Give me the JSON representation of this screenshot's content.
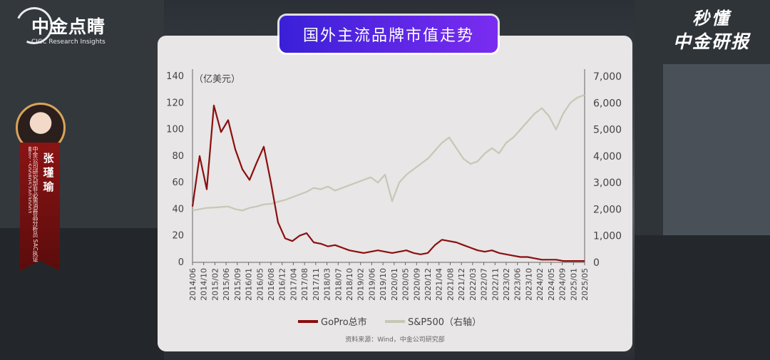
{
  "logo": {
    "title": "中金点睛",
    "subtitle": "CICC Research Insights"
  },
  "brand": {
    "line1": "秒懂",
    "line2": "中金研报"
  },
  "presenter": {
    "name": "张瑾瑜",
    "cert": "中金公司研究部非必需消费品分析员 SAC执证编号：S0080524030001"
  },
  "chart_title": "国外主流品牌市值走势",
  "source": "资料来源：Wind，中金公司研究部",
  "chart_data": {
    "type": "line",
    "y_unit_label": "（亿美元）",
    "ylim_left": [
      0,
      140
    ],
    "ylim_right": [
      0,
      7000
    ],
    "yticks_left": [
      "0",
      "20",
      "40",
      "60",
      "80",
      "100",
      "120",
      "140"
    ],
    "yticks_right": [
      "0",
      "1,000",
      "2,000",
      "3,000",
      "4,000",
      "5,000",
      "6,000",
      "7,000"
    ],
    "x_ticks": [
      "2014/06",
      "2014/10",
      "2015/02",
      "2015/06",
      "2015/09",
      "2016/01",
      "2016/05",
      "2016/08",
      "2016/12",
      "2017/04",
      "2017/08",
      "2017/11",
      "2018/03",
      "2018/07",
      "2018/10",
      "2019/02",
      "2019/06",
      "2019/10",
      "2020/01",
      "2020/05",
      "2020/09",
      "2020/12",
      "2021/04",
      "2021/08",
      "2021/12",
      "2022/03",
      "2022/07",
      "2022/11",
      "2023/02",
      "2023/06",
      "2023/10",
      "2024/02",
      "2024/05",
      "2024/09",
      "2025/01",
      "2025/05"
    ],
    "legend_position": "bottom",
    "series": [
      {
        "name": "GoPro总市",
        "axis": "left",
        "color": "#8b0e0e",
        "values": [
          42,
          80,
          55,
          118,
          98,
          107,
          85,
          70,
          62,
          75,
          87,
          60,
          30,
          18,
          16,
          20,
          22,
          15,
          14,
          12,
          13,
          11,
          9,
          8,
          7,
          8,
          9,
          8,
          7,
          8,
          9,
          7,
          6,
          7,
          13,
          17,
          16,
          15,
          13,
          11,
          9,
          8,
          9,
          7,
          6,
          5,
          4,
          4,
          3,
          2,
          2,
          2,
          1,
          1,
          1,
          1
        ]
      },
      {
        "name": "S&P500（右轴）",
        "axis": "right",
        "color": "#c8c6b6",
        "values": [
          1950,
          2000,
          2050,
          2060,
          2080,
          2100,
          2000,
          1950,
          2050,
          2100,
          2180,
          2200,
          2280,
          2350,
          2450,
          2550,
          2650,
          2800,
          2750,
          2850,
          2700,
          2800,
          2900,
          3000,
          3100,
          3200,
          3000,
          3300,
          2300,
          3000,
          3300,
          3500,
          3700,
          3900,
          4200,
          4500,
          4700,
          4300,
          3900,
          3700,
          3800,
          4100,
          4300,
          4100,
          4500,
          4700,
          5000,
          5300,
          5600,
          5800,
          5500,
          5000,
          5600,
          6000,
          6200,
          6300
        ]
      }
    ]
  },
  "colors": {
    "banner_start": "#3a20d8",
    "banner_end": "#7a2cf0",
    "gopro": "#8b0e0e",
    "sp500": "#c8c6b6"
  }
}
